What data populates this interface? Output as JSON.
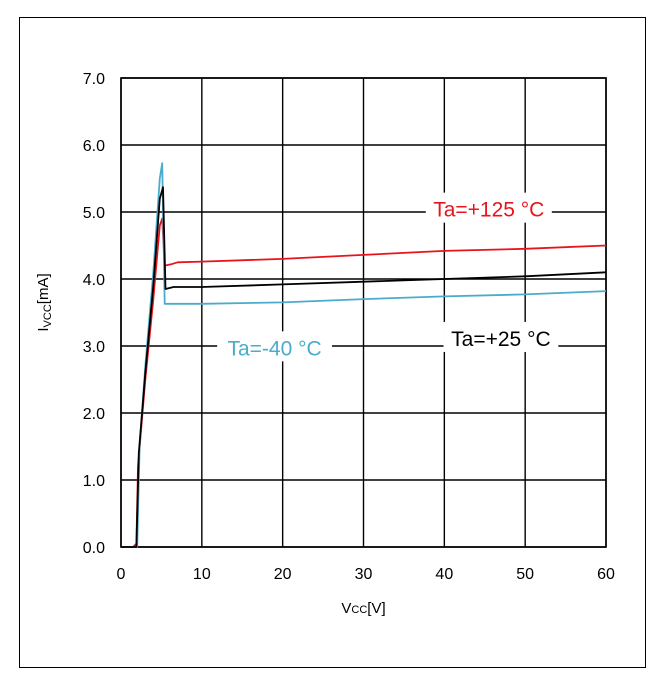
{
  "chart_data": {
    "type": "line",
    "xlabel": "Vcc[V]",
    "ylabel": "Ivcc[mA]",
    "ylabel_parts": {
      "main": "I",
      "sub": "VCC",
      "tail": "[mA]"
    },
    "xlabel_parts": {
      "main": "V",
      "sub": "CC",
      "tail": "[V]"
    },
    "xlim": [
      0,
      60
    ],
    "ylim": [
      0,
      7
    ],
    "x_ticks": [
      0,
      10,
      20,
      30,
      40,
      50,
      60
    ],
    "y_ticks": [
      0,
      1,
      2,
      3,
      4,
      5,
      6,
      7
    ],
    "x_tick_labels": [
      "0",
      "10",
      "20",
      "30",
      "40",
      "50",
      "60"
    ],
    "y_tick_labels": [
      "0.0",
      "1.0",
      "2.0",
      "3.0",
      "4.0",
      "5.0",
      "6.0",
      "7.0"
    ],
    "grid": true,
    "series": [
      {
        "name": "Ta=+125 °C",
        "color": "#e8141b",
        "points": [
          [
            0,
            0
          ],
          [
            1.5,
            0
          ],
          [
            1.9,
            0.05
          ],
          [
            2.1,
            1.2
          ],
          [
            3,
            2.5
          ],
          [
            4,
            3.7
          ],
          [
            4.8,
            4.8
          ],
          [
            5.1,
            4.9
          ],
          [
            5.4,
            4.2
          ],
          [
            6.2,
            4.22
          ],
          [
            7,
            4.25
          ],
          [
            10,
            4.26
          ],
          [
            20,
            4.3
          ],
          [
            30,
            4.36
          ],
          [
            40,
            4.42
          ],
          [
            50,
            4.45
          ],
          [
            60,
            4.5
          ]
        ]
      },
      {
        "name": "Ta=+25 °C",
        "color": "#000000",
        "points": [
          [
            0,
            0
          ],
          [
            1.9,
            0
          ],
          [
            2.2,
            1.4
          ],
          [
            3,
            2.6
          ],
          [
            4,
            3.9
          ],
          [
            4.8,
            5.2
          ],
          [
            5.2,
            5.37
          ],
          [
            5.5,
            3.85
          ],
          [
            6.5,
            3.88
          ],
          [
            10,
            3.88
          ],
          [
            20,
            3.92
          ],
          [
            30,
            3.96
          ],
          [
            40,
            4.0
          ],
          [
            50,
            4.04
          ],
          [
            60,
            4.1
          ]
        ]
      },
      {
        "name": "Ta=-40 °C",
        "color": "#4aaccc",
        "points": [
          [
            0,
            0
          ],
          [
            2.0,
            0
          ],
          [
            2.3,
            1.5
          ],
          [
            3,
            2.7
          ],
          [
            4,
            4.1
          ],
          [
            4.8,
            5.5
          ],
          [
            5.1,
            5.73
          ],
          [
            5.4,
            3.63
          ],
          [
            6.5,
            3.63
          ],
          [
            10,
            3.63
          ],
          [
            20,
            3.65
          ],
          [
            30,
            3.7
          ],
          [
            40,
            3.74
          ],
          [
            50,
            3.77
          ],
          [
            60,
            3.82
          ]
        ]
      }
    ],
    "annotations": [
      {
        "text": "Ta=+125 °C",
        "color": "#e8141b",
        "x": 45.5,
        "y": 5.05
      },
      {
        "text": "Ta=+25 °C",
        "color": "#000000",
        "x": 47,
        "y": 3.12
      },
      {
        "text": "Ta=-40 °C",
        "color": "#4aaccc",
        "x": 19,
        "y": 2.98
      }
    ]
  }
}
